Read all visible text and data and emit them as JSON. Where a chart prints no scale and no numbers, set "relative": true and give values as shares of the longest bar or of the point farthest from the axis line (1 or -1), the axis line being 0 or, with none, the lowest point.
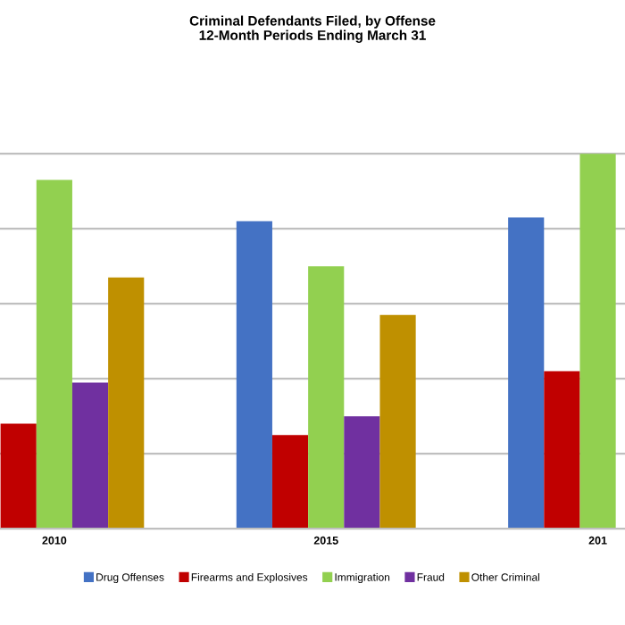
{
  "chart_data": {
    "type": "bar",
    "title": "Criminal Defendants Filed, by Offense",
    "subtitle": "12-Month Periods Ending March 31",
    "categories": [
      "2010",
      "2015",
      "201"
    ],
    "relative": true,
    "grid": "y",
    "legend": "bottom",
    "series": [
      {
        "name": "Drug Offenses",
        "color": "#4472c4",
        "values": [
          null,
          0.82,
          0.83
        ]
      },
      {
        "name": "Firearms and Explosives",
        "color": "#c00000",
        "values": [
          0.28,
          0.25,
          0.42
        ]
      },
      {
        "name": "Immigration",
        "color": "#92d050",
        "values": [
          0.93,
          0.7,
          1.0
        ]
      },
      {
        "name": "Fraud",
        "color": "#7030a0",
        "values": [
          0.39,
          0.3,
          null
        ]
      },
      {
        "name": "Other Criminal",
        "color": "#bf9000",
        "values": [
          0.67,
          0.57,
          null
        ]
      }
    ]
  }
}
